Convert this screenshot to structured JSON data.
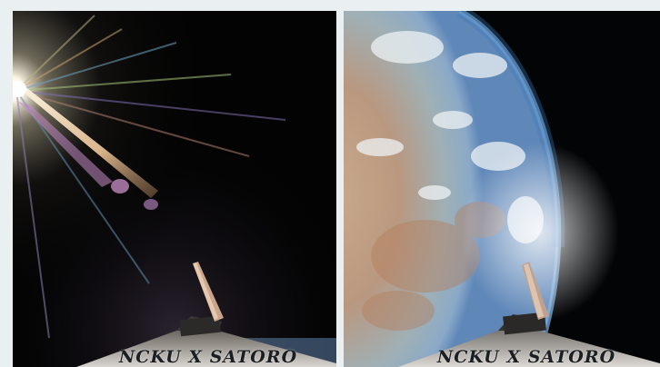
{
  "figure": {
    "left_photo": {
      "subject": "sun-flare",
      "plate_text": "NCKU X SATORO"
    },
    "right_photo": {
      "subject": "earth-limb",
      "plate_text": "NCKU X SATORO"
    }
  }
}
